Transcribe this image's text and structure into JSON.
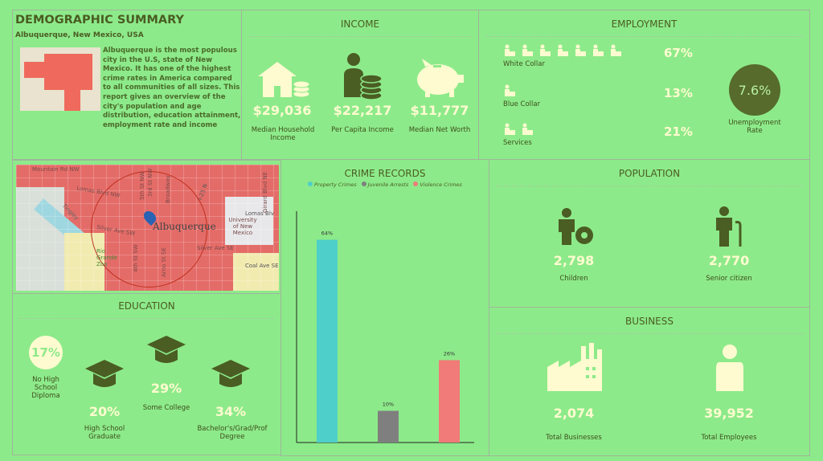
{
  "summary": {
    "title": "DEMOGRAPHIC SUMMARY",
    "location": "Albuquerque, New Mexico, USA",
    "description": "Albuquerque is the most populous city in the U.S, state of New Mexico. It has one of the highest crime rates in America compared to all communities of all sizes. This report gives an overview of the city's population and age distribution, education attainment, employment rate and income"
  },
  "income": {
    "title": "INCOME",
    "items": [
      {
        "value": "$29,036",
        "label": "Median Household Income",
        "icon": "house-icon"
      },
      {
        "value": "$22,217",
        "label": "Per Capita Income",
        "icon": "person-coins-icon"
      },
      {
        "value": "$11,777",
        "label": "Median Net Worth",
        "icon": "piggy-bank-icon"
      }
    ]
  },
  "employment": {
    "title": "EMPLOYMENT",
    "rows": [
      {
        "label": "White Collar",
        "value": "67%",
        "icons": 7
      },
      {
        "label": "Blue Collar",
        "value": "13%",
        "icons": 1
      },
      {
        "label": "Services",
        "value": "21%",
        "icons": 2
      }
    ],
    "unemployment": {
      "value": "7.6%",
      "label": "Unemployment Rate"
    }
  },
  "map": {
    "city": "Albuquerque",
    "streets": [
      "Mountain Rd NW",
      "Lomas Blvd NW",
      "Silver Ave SW",
      "5th St NW",
      "3rd St NW",
      "Broadway",
      "Tingley",
      "Arno St SE",
      "Silver Ave SE",
      "Coal Ave SE",
      "University of New Mexico",
      "Lomas Blv",
      "Girard Blvd NE",
      "I-25 N",
      "4th St SW",
      "Rio Grande Zoo"
    ]
  },
  "education": {
    "title": "EDUCATION",
    "items": [
      {
        "value": "17%",
        "label": "No High School Diploma"
      },
      {
        "value": "20%",
        "label": "High School Graduate"
      },
      {
        "value": "29%",
        "label": "Some College"
      },
      {
        "value": "34%",
        "label": "Bachelor's/Grad/Prof Degree"
      }
    ]
  },
  "chart_data": {
    "type": "bar",
    "title": "CRIME RECORDS",
    "categories": [
      "Property Crimes",
      "Juvenile Arrests",
      "Violence Crimes"
    ],
    "values": [
      64,
      10,
      26
    ],
    "data_labels": [
      "64%",
      "10%",
      "26%"
    ],
    "colors": [
      "#4ecfc9",
      "#7f7f7f",
      "#f07b78"
    ],
    "ylim": [
      0,
      73
    ],
    "legend": "top",
    "grid": false
  },
  "population": {
    "title": "POPULATION",
    "items": [
      {
        "value": "2,798",
        "label": "Children"
      },
      {
        "value": "2,770",
        "label": "Senior citizen"
      }
    ]
  },
  "business": {
    "title": "BUSINESS",
    "items": [
      {
        "value": "2,074",
        "label": "Total Businesses"
      },
      {
        "value": "39,952",
        "label": "Total Employees"
      }
    ]
  },
  "colors": {
    "background": "#8dea8a",
    "text": "#4a5d23",
    "icon": "#fffbd0",
    "dark_circle": "#566b2c"
  }
}
